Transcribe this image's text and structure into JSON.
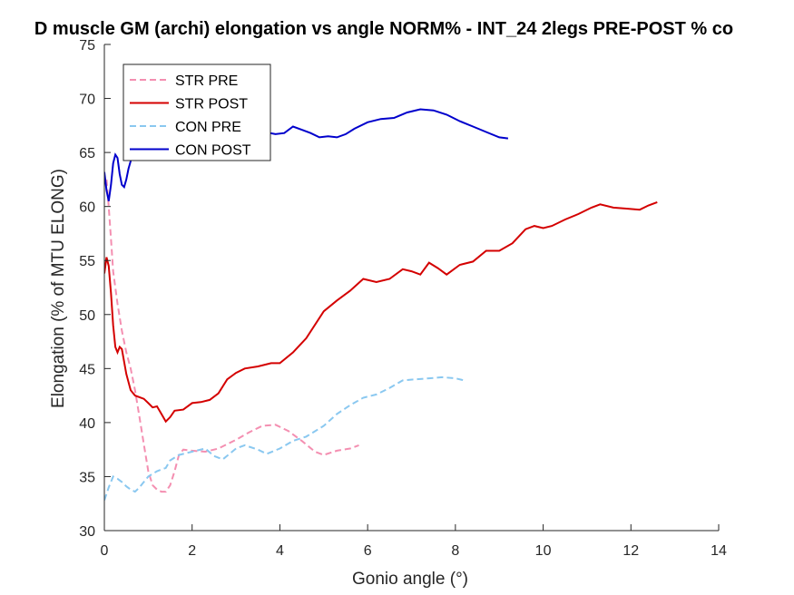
{
  "chart_data": {
    "type": "line",
    "title": "D muscle GM (archi) elongation vs angle NORM% - INT_24 2legs PRE-POST % co",
    "xlabel": "Gonio angle (°)",
    "ylabel": "Elongation (% of MTU ELONG)",
    "xlim": [
      0,
      14
    ],
    "ylim": [
      30,
      75
    ],
    "x_ticks": [
      0,
      2,
      4,
      6,
      8,
      10,
      12,
      14
    ],
    "y_ticks": [
      30,
      35,
      40,
      45,
      50,
      55,
      60,
      65,
      70,
      75
    ],
    "grid": false,
    "legend_position": "top-left",
    "series": [
      {
        "name": "STR PRE",
        "color": "#f48fb1",
        "dash": "dashed",
        "points": [
          [
            0.05,
            62.5
          ],
          [
            0.1,
            60
          ],
          [
            0.15,
            57
          ],
          [
            0.2,
            54
          ],
          [
            0.3,
            51
          ],
          [
            0.4,
            48.5
          ],
          [
            0.5,
            46.5
          ],
          [
            0.6,
            45
          ],
          [
            0.7,
            43
          ],
          [
            0.8,
            40.5
          ],
          [
            0.9,
            38
          ],
          [
            1.0,
            35.5
          ],
          [
            1.1,
            34.2
          ],
          [
            1.2,
            33.8
          ],
          [
            1.3,
            33.6
          ],
          [
            1.4,
            33.6
          ],
          [
            1.5,
            34.2
          ],
          [
            1.6,
            35.5
          ],
          [
            1.7,
            37
          ],
          [
            1.8,
            37.5
          ],
          [
            2.0,
            37.4
          ],
          [
            2.3,
            37.3
          ],
          [
            2.6,
            37.6
          ],
          [
            3.0,
            38.4
          ],
          [
            3.3,
            39.1
          ],
          [
            3.6,
            39.7
          ],
          [
            3.9,
            39.8
          ],
          [
            4.2,
            39.2
          ],
          [
            4.5,
            38.3
          ],
          [
            4.8,
            37.3
          ],
          [
            5.0,
            37.0
          ],
          [
            5.3,
            37.4
          ],
          [
            5.6,
            37.6
          ],
          [
            5.8,
            37.9
          ]
        ]
      },
      {
        "name": "STR POST",
        "color": "#d40000",
        "dash": "solid",
        "points": [
          [
            0.0,
            53.8
          ],
          [
            0.05,
            55.3
          ],
          [
            0.1,
            54.5
          ],
          [
            0.15,
            52
          ],
          [
            0.2,
            49
          ],
          [
            0.25,
            47
          ],
          [
            0.3,
            46.5
          ],
          [
            0.35,
            47
          ],
          [
            0.4,
            46.8
          ],
          [
            0.5,
            44.5
          ],
          [
            0.6,
            43
          ],
          [
            0.7,
            42.5
          ],
          [
            0.9,
            42.2
          ],
          [
            1.0,
            41.8
          ],
          [
            1.1,
            41.4
          ],
          [
            1.2,
            41.5
          ],
          [
            1.3,
            40.8
          ],
          [
            1.4,
            40.1
          ],
          [
            1.5,
            40.5
          ],
          [
            1.6,
            41.1
          ],
          [
            1.8,
            41.2
          ],
          [
            2.0,
            41.8
          ],
          [
            2.2,
            41.9
          ],
          [
            2.4,
            42.1
          ],
          [
            2.6,
            42.7
          ],
          [
            2.8,
            44.0
          ],
          [
            3.0,
            44.6
          ],
          [
            3.2,
            45.0
          ],
          [
            3.5,
            45.2
          ],
          [
            3.8,
            45.5
          ],
          [
            4.0,
            45.5
          ],
          [
            4.3,
            46.5
          ],
          [
            4.6,
            47.8
          ],
          [
            5.0,
            50.3
          ],
          [
            5.3,
            51.3
          ],
          [
            5.6,
            52.2
          ],
          [
            5.9,
            53.3
          ],
          [
            6.2,
            53.0
          ],
          [
            6.5,
            53.3
          ],
          [
            6.8,
            54.2
          ],
          [
            7.0,
            54.0
          ],
          [
            7.2,
            53.7
          ],
          [
            7.4,
            54.8
          ],
          [
            7.6,
            54.3
          ],
          [
            7.8,
            53.7
          ],
          [
            8.1,
            54.6
          ],
          [
            8.4,
            54.9
          ],
          [
            8.7,
            55.9
          ],
          [
            9.0,
            55.9
          ],
          [
            9.3,
            56.6
          ],
          [
            9.6,
            57.9
          ],
          [
            9.8,
            58.2
          ],
          [
            10.0,
            58.0
          ],
          [
            10.2,
            58.2
          ],
          [
            10.5,
            58.8
          ],
          [
            10.8,
            59.3
          ],
          [
            11.1,
            59.9
          ],
          [
            11.3,
            60.2
          ],
          [
            11.6,
            59.9
          ],
          [
            11.9,
            59.8
          ],
          [
            12.2,
            59.7
          ],
          [
            12.4,
            60.1
          ],
          [
            12.6,
            60.4
          ]
        ]
      },
      {
        "name": "CON PRE",
        "color": "#8ac8f0",
        "dash": "dashed",
        "points": [
          [
            0.0,
            32.8
          ],
          [
            0.1,
            34.0
          ],
          [
            0.2,
            35.0
          ],
          [
            0.3,
            34.8
          ],
          [
            0.4,
            34.5
          ],
          [
            0.5,
            34.1
          ],
          [
            0.6,
            33.8
          ],
          [
            0.7,
            33.6
          ],
          [
            0.8,
            34.0
          ],
          [
            0.9,
            34.5
          ],
          [
            1.0,
            35.0
          ],
          [
            1.2,
            35.5
          ],
          [
            1.4,
            35.8
          ],
          [
            1.5,
            36.5
          ],
          [
            1.7,
            37.0
          ],
          [
            2.0,
            37.3
          ],
          [
            2.3,
            37.6
          ],
          [
            2.5,
            36.9
          ],
          [
            2.7,
            36.6
          ],
          [
            3.0,
            37.6
          ],
          [
            3.2,
            37.9
          ],
          [
            3.5,
            37.5
          ],
          [
            3.7,
            37.1
          ],
          [
            4.0,
            37.6
          ],
          [
            4.3,
            38.3
          ],
          [
            4.6,
            38.7
          ],
          [
            5.0,
            39.7
          ],
          [
            5.3,
            40.8
          ],
          [
            5.6,
            41.6
          ],
          [
            5.9,
            42.3
          ],
          [
            6.2,
            42.6
          ],
          [
            6.5,
            43.2
          ],
          [
            6.8,
            43.9
          ],
          [
            7.1,
            44.0
          ],
          [
            7.4,
            44.1
          ],
          [
            7.7,
            44.2
          ],
          [
            8.0,
            44.1
          ],
          [
            8.2,
            43.9
          ]
        ]
      },
      {
        "name": "CON POST",
        "color": "#0000cc",
        "dash": "solid",
        "points": [
          [
            0.0,
            63.2
          ],
          [
            0.05,
            61.5
          ],
          [
            0.1,
            60.5
          ],
          [
            0.15,
            62
          ],
          [
            0.2,
            64
          ],
          [
            0.25,
            64.8
          ],
          [
            0.3,
            64.5
          ],
          [
            0.35,
            63
          ],
          [
            0.4,
            62
          ],
          [
            0.45,
            61.8
          ],
          [
            0.5,
            62.5
          ],
          [
            0.55,
            63.5
          ],
          [
            0.6,
            64.2
          ],
          [
            0.7,
            65.5
          ],
          [
            0.8,
            66.5
          ],
          [
            1.0,
            67.0
          ],
          [
            1.5,
            67.0
          ],
          [
            2.0,
            66.9
          ],
          [
            2.5,
            67.2
          ],
          [
            3.0,
            67.0
          ],
          [
            3.5,
            67.0
          ],
          [
            3.9,
            66.7
          ],
          [
            4.1,
            66.8
          ],
          [
            4.3,
            67.4
          ],
          [
            4.5,
            67.1
          ],
          [
            4.7,
            66.8
          ],
          [
            4.9,
            66.4
          ],
          [
            5.1,
            66.5
          ],
          [
            5.3,
            66.4
          ],
          [
            5.5,
            66.7
          ],
          [
            5.7,
            67.2
          ],
          [
            6.0,
            67.8
          ],
          [
            6.3,
            68.1
          ],
          [
            6.6,
            68.2
          ],
          [
            6.9,
            68.7
          ],
          [
            7.2,
            69.0
          ],
          [
            7.5,
            68.9
          ],
          [
            7.8,
            68.5
          ],
          [
            8.1,
            67.9
          ],
          [
            8.4,
            67.4
          ],
          [
            8.7,
            66.9
          ],
          [
            9.0,
            66.4
          ],
          [
            9.2,
            66.3
          ]
        ]
      }
    ]
  }
}
